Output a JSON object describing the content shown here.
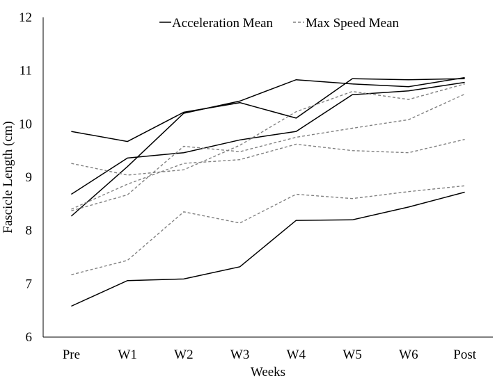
{
  "chart_data": {
    "type": "line",
    "xlabel": "Weeks",
    "ylabel": "Fascicle Length (cm)",
    "ylim": [
      6,
      12
    ],
    "yticks": [
      6,
      7,
      8,
      9,
      10,
      11,
      12
    ],
    "grid": false,
    "legend_position": "top",
    "categories": [
      "Pre",
      "W1",
      "W2",
      "W3",
      "W4",
      "W5",
      "W6",
      "Post"
    ],
    "legend": [
      {
        "label": "Acceleration Mean",
        "style": "solid",
        "color": "#000000"
      },
      {
        "label": "Max Speed Mean",
        "style": "dashed",
        "color": "#808080"
      }
    ],
    "series": [
      {
        "group": "Acceleration Mean",
        "values": [
          9.86,
          9.67,
          10.22,
          10.4,
          10.11,
          10.85,
          10.83,
          10.85
        ]
      },
      {
        "group": "Acceleration Mean",
        "values": [
          8.68,
          9.36,
          9.46,
          9.7,
          9.86,
          10.55,
          10.62,
          10.78
        ]
      },
      {
        "group": "Acceleration Mean",
        "values": [
          8.27,
          9.2,
          10.2,
          10.43,
          10.83,
          10.75,
          10.7,
          10.87
        ]
      },
      {
        "group": "Acceleration Mean",
        "values": [
          6.58,
          7.06,
          7.09,
          7.32,
          8.19,
          8.2,
          8.44,
          8.72
        ]
      },
      {
        "group": "Max Speed Mean",
        "values": [
          9.26,
          9.04,
          9.14,
          9.6,
          10.23,
          10.61,
          10.46,
          10.75
        ]
      },
      {
        "group": "Max Speed Mean",
        "values": [
          8.4,
          8.87,
          9.26,
          9.33,
          9.62,
          9.5,
          9.46,
          9.71
        ]
      },
      {
        "group": "Max Speed Mean",
        "values": [
          8.37,
          8.67,
          9.58,
          9.48,
          9.75,
          9.92,
          10.08,
          10.56
        ]
      },
      {
        "group": "Max Speed Mean",
        "values": [
          7.17,
          7.44,
          8.35,
          8.14,
          8.68,
          8.6,
          8.73,
          8.84
        ]
      }
    ]
  }
}
